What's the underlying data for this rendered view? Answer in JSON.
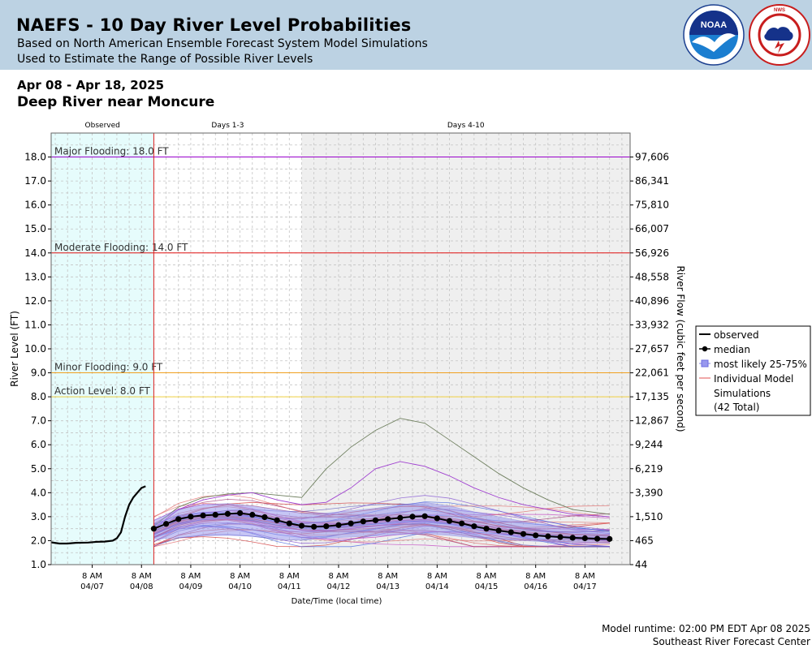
{
  "header": {
    "title": "NAEFS - 10 Day River Level Probabilities",
    "subtitle1": "Based on North American Ensemble Forecast System Model Simulations",
    "subtitle2": "Used to Estimate the Range of Possible River Levels",
    "logos": {
      "noaa": "NOAA",
      "nws": "NATIONAL WEATHER SERVICE"
    },
    "colors": {
      "background": "#bcd2e3"
    }
  },
  "date_range": "Apr 08 - Apr 18, 2025",
  "station": "Deep River near Moncure",
  "footer": {
    "runtime": "Model runtime: 02:00 PM EDT Apr 08 2025",
    "center": "Southeast River Forecast Center"
  },
  "chart_data": {
    "type": "line",
    "ylabel": "River Level (FT)",
    "y2label": "River Flow (cubic feet per second)",
    "xlabel": "Date/Time (local time)",
    "ylim": [
      1.0,
      19.0
    ],
    "xlim": [
      "2025-04-06T12:00",
      "2025-04-18T06:00"
    ],
    "grid": true,
    "regions": [
      {
        "label": "Observed",
        "start": "2025-04-06T12:00",
        "end": "2025-04-08T14:00",
        "color": "#e6fcfc"
      },
      {
        "label": "Days 1-3",
        "start": "2025-04-08T14:00",
        "end": "2025-04-11T14:00",
        "color": "#ffffff"
      },
      {
        "label": "Days 4-10",
        "start": "2025-04-11T14:00",
        "end": "2025-04-18T06:00",
        "color": "#efefef"
      }
    ],
    "y_ticks": [
      "1.0",
      "2.0",
      "3.0",
      "4.0",
      "5.0",
      "6.0",
      "7.0",
      "8.0",
      "9.0",
      "10.0",
      "11.0",
      "12.0",
      "13.0",
      "14.0",
      "15.0",
      "16.0",
      "17.0",
      "18.0"
    ],
    "y2_ticks": [
      {
        "stage": 1.0,
        "label": "44"
      },
      {
        "stage": 2.0,
        "label": "465"
      },
      {
        "stage": 3.0,
        "label": "1,510"
      },
      {
        "stage": 4.0,
        "label": "3,390"
      },
      {
        "stage": 5.0,
        "label": "6,219"
      },
      {
        "stage": 6.0,
        "label": "9,244"
      },
      {
        "stage": 7.0,
        "label": "12,867"
      },
      {
        "stage": 8.0,
        "label": "17,135"
      },
      {
        "stage": 9.0,
        "label": "22,061"
      },
      {
        "stage": 10.0,
        "label": "27,657"
      },
      {
        "stage": 11.0,
        "label": "33,932"
      },
      {
        "stage": 12.0,
        "label": "40,896"
      },
      {
        "stage": 13.0,
        "label": "48,558"
      },
      {
        "stage": 14.0,
        "label": "56,926"
      },
      {
        "stage": 15.0,
        "label": "66,007"
      },
      {
        "stage": 16.0,
        "label": "75,810"
      },
      {
        "stage": 17.0,
        "label": "86,341"
      },
      {
        "stage": 18.0,
        "label": "97,606"
      }
    ],
    "x_ticks": [
      {
        "time": "2025-04-07T08:00",
        "line1": "8 AM",
        "line2": "04/07"
      },
      {
        "time": "2025-04-08T08:00",
        "line1": "8 AM",
        "line2": "04/08"
      },
      {
        "time": "2025-04-09T08:00",
        "line1": "8 AM",
        "line2": "04/09"
      },
      {
        "time": "2025-04-10T08:00",
        "line1": "8 AM",
        "line2": "04/10"
      },
      {
        "time": "2025-04-11T08:00",
        "line1": "8 AM",
        "line2": "04/11"
      },
      {
        "time": "2025-04-12T08:00",
        "line1": "8 AM",
        "line2": "04/12"
      },
      {
        "time": "2025-04-13T08:00",
        "line1": "8 AM",
        "line2": "04/13"
      },
      {
        "time": "2025-04-14T08:00",
        "line1": "8 AM",
        "line2": "04/14"
      },
      {
        "time": "2025-04-15T08:00",
        "line1": "8 AM",
        "line2": "04/15"
      },
      {
        "time": "2025-04-16T08:00",
        "line1": "8 AM",
        "line2": "04/16"
      },
      {
        "time": "2025-04-17T08:00",
        "line1": "8 AM",
        "line2": "04/17"
      }
    ],
    "flood_levels": [
      {
        "label": "Major Flooding: 18.0 FT",
        "value": 18.0,
        "color": "#9900cc"
      },
      {
        "label": "Moderate Flooding: 14.0 FT",
        "value": 14.0,
        "color": "#e01010"
      },
      {
        "label": "Minor Flooding: 9.0 FT",
        "value": 9.0,
        "color": "#f0a020"
      },
      {
        "label": "Action Level: 8.0 FT",
        "value": 8.0,
        "color": "#f0d040"
      }
    ],
    "forecast_start": "2025-04-08T14:00",
    "observed": {
      "name": "observed",
      "color": "#000000",
      "points": [
        [
          "2025-04-06T12:00",
          1.93
        ],
        [
          "2025-04-06T16:00",
          1.88
        ],
        [
          "2025-04-06T20:00",
          1.88
        ],
        [
          "2025-04-07T00:00",
          1.91
        ],
        [
          "2025-04-07T06:00",
          1.92
        ],
        [
          "2025-04-07T10:00",
          1.95
        ],
        [
          "2025-04-07T14:00",
          1.96
        ],
        [
          "2025-04-07T18:00",
          2.0
        ],
        [
          "2025-04-07T20:00",
          2.1
        ],
        [
          "2025-04-07T22:00",
          2.35
        ],
        [
          "2025-04-08T00:00",
          3.0
        ],
        [
          "2025-04-08T02:00",
          3.5
        ],
        [
          "2025-04-08T04:00",
          3.8
        ],
        [
          "2025-04-08T06:00",
          4.0
        ],
        [
          "2025-04-08T08:00",
          4.2
        ],
        [
          "2025-04-08T10:00",
          4.27
        ]
      ]
    },
    "median": {
      "name": "median",
      "points": [
        [
          "2025-04-08T14:00",
          2.5
        ],
        [
          "2025-04-08T20:00",
          2.7
        ],
        [
          "2025-04-09T02:00",
          2.9
        ],
        [
          "2025-04-09T08:00",
          3.0
        ],
        [
          "2025-04-09T14:00",
          3.05
        ],
        [
          "2025-04-09T20:00",
          3.08
        ],
        [
          "2025-04-10T02:00",
          3.12
        ],
        [
          "2025-04-10T08:00",
          3.15
        ],
        [
          "2025-04-10T14:00",
          3.08
        ],
        [
          "2025-04-10T20:00",
          2.98
        ],
        [
          "2025-04-11T02:00",
          2.85
        ],
        [
          "2025-04-11T08:00",
          2.72
        ],
        [
          "2025-04-11T14:00",
          2.62
        ],
        [
          "2025-04-11T20:00",
          2.58
        ],
        [
          "2025-04-12T02:00",
          2.6
        ],
        [
          "2025-04-12T08:00",
          2.65
        ],
        [
          "2025-04-12T14:00",
          2.72
        ],
        [
          "2025-04-12T20:00",
          2.8
        ],
        [
          "2025-04-13T02:00",
          2.85
        ],
        [
          "2025-04-13T08:00",
          2.9
        ],
        [
          "2025-04-13T14:00",
          2.95
        ],
        [
          "2025-04-13T20:00",
          3.0
        ],
        [
          "2025-04-14T02:00",
          3.02
        ],
        [
          "2025-04-14T08:00",
          2.93
        ],
        [
          "2025-04-14T14:00",
          2.82
        ],
        [
          "2025-04-14T20:00",
          2.72
        ],
        [
          "2025-04-15T02:00",
          2.6
        ],
        [
          "2025-04-15T08:00",
          2.5
        ],
        [
          "2025-04-15T14:00",
          2.42
        ],
        [
          "2025-04-15T20:00",
          2.35
        ],
        [
          "2025-04-16T02:00",
          2.28
        ],
        [
          "2025-04-16T08:00",
          2.22
        ],
        [
          "2025-04-16T14:00",
          2.18
        ],
        [
          "2025-04-16T20:00",
          2.15
        ],
        [
          "2025-04-17T02:00",
          2.12
        ],
        [
          "2025-04-17T08:00",
          2.1
        ],
        [
          "2025-04-17T14:00",
          2.08
        ],
        [
          "2025-04-17T20:00",
          2.07
        ]
      ]
    },
    "likely_band": {
      "name": "most likely 25-75%",
      "color": "#9999ee",
      "times": [
        "2025-04-08T14:00",
        "2025-04-09T02:00",
        "2025-04-09T14:00",
        "2025-04-10T02:00",
        "2025-04-10T14:00",
        "2025-04-11T02:00",
        "2025-04-11T14:00",
        "2025-04-12T02:00",
        "2025-04-12T14:00",
        "2025-04-13T02:00",
        "2025-04-13T14:00",
        "2025-04-14T02:00",
        "2025-04-14T14:00",
        "2025-04-15T02:00",
        "2025-04-15T14:00",
        "2025-04-16T02:00",
        "2025-04-16T14:00",
        "2025-04-17T02:00",
        "2025-04-17T20:00"
      ],
      "low": [
        2.05,
        2.12,
        2.2,
        2.22,
        2.18,
        2.1,
        2.05,
        2.1,
        2.15,
        2.2,
        2.25,
        2.28,
        2.22,
        2.12,
        2.05,
        2.0,
        1.95,
        1.92,
        1.9
      ],
      "high": [
        2.85,
        3.3,
        3.5,
        3.55,
        3.45,
        3.3,
        3.15,
        3.15,
        3.25,
        3.35,
        3.5,
        3.6,
        3.45,
        3.2,
        3.0,
        2.8,
        2.65,
        2.5,
        2.35
      ]
    },
    "simulations": {
      "name": "Individual Model Simulations",
      "count_label": "(42 Total)",
      "count": 42,
      "color": "#e05050"
    },
    "legend": {
      "position": "right",
      "items": [
        "observed",
        "median",
        "most likely 25-75%",
        "Individual Model Simulations",
        "(42 Total)"
      ]
    }
  }
}
